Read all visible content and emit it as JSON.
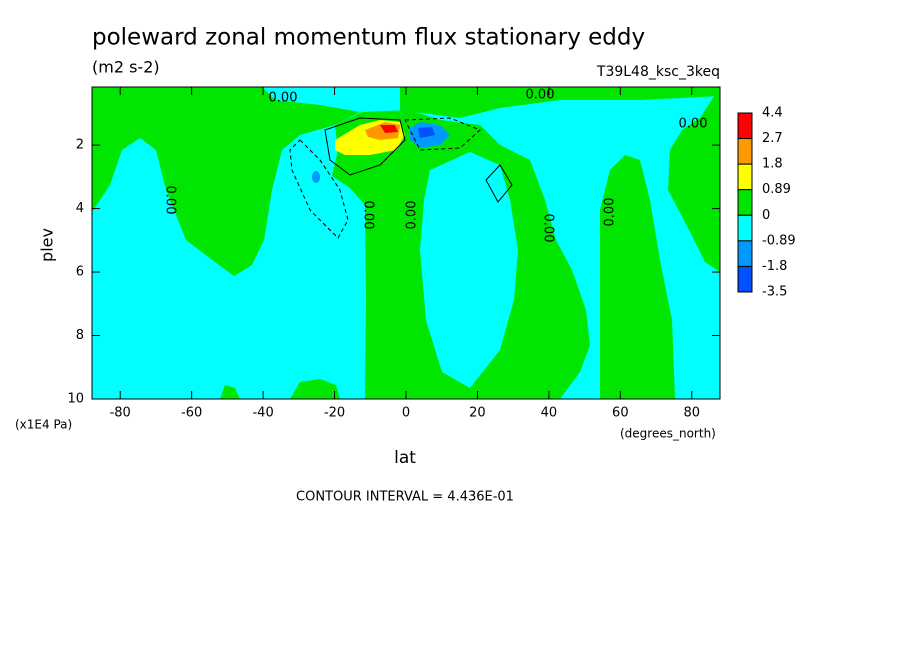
{
  "chart_data": {
    "type": "contour",
    "title": "poleward zonal momentum flux stationary eddy",
    "subtitle": "(m2 s-2)",
    "run_label": "T39L48_ksc_3keq",
    "x_label": "lat",
    "x_units": "(degrees_north)",
    "y_label": "plev",
    "y_units": "(x1E4 Pa)",
    "xlim": [
      -87.9,
      87.9
    ],
    "xticks": [
      -80,
      -60,
      -40,
      -20,
      0,
      20,
      40,
      60,
      80
    ],
    "ylim": [
      0.17,
      10
    ],
    "y_reversed": true,
    "yticks": [
      2,
      4,
      6,
      8,
      10
    ],
    "colorbar": {
      "levels": [
        4.4,
        2.7,
        1.8,
        0.89,
        0,
        -0.89,
        -1.8,
        -3.5
      ],
      "colors": [
        "#ff0000",
        "#ff9900",
        "#ffff00",
        "#00e600",
        "#00ffff",
        "#0099ff",
        "#0050ff"
      ]
    },
    "contour_labels": [
      "0.00",
      "0.00",
      "0.00",
      "0.00",
      "0.00",
      "0.00",
      "0.00",
      "0.00"
    ],
    "footer": "CONTOUR INTERVAL = 4.436E-01"
  }
}
